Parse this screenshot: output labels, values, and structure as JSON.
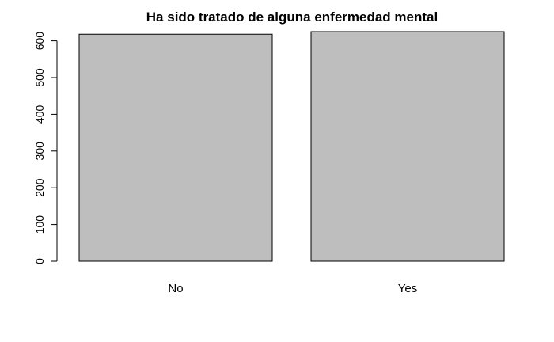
{
  "chart_data": {
    "type": "bar",
    "title": "Ha sido tratado de alguna enfermedad mental",
    "xlabel": "",
    "ylabel": "",
    "categories": [
      "No",
      "Yes"
    ],
    "values": [
      618,
      625
    ],
    "ylim": [
      0,
      625
    ],
    "yticks": [
      0,
      100,
      200,
      300,
      400,
      500,
      600
    ],
    "grid": false,
    "bar_color": "#bebebe",
    "bar_border_color": "#000000"
  }
}
